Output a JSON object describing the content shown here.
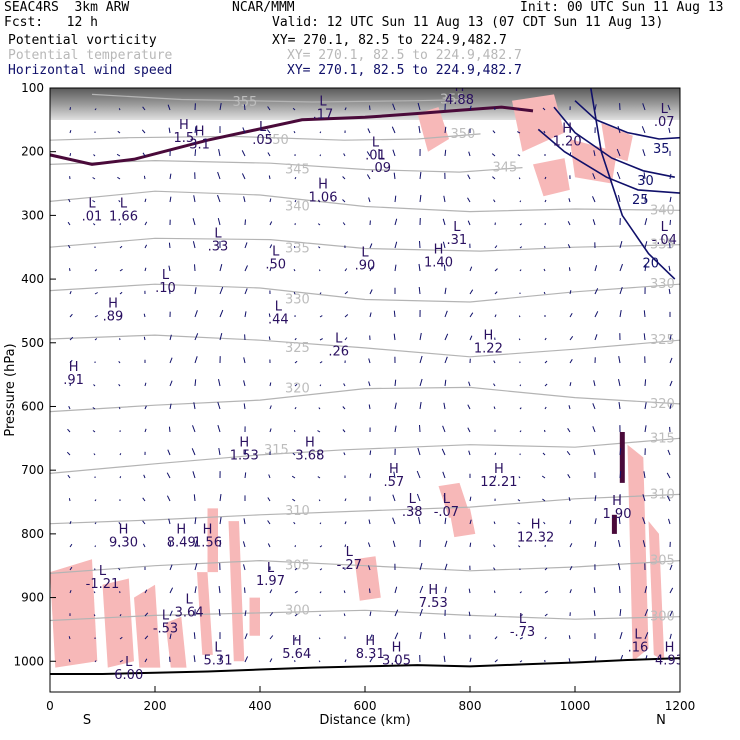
{
  "header": {
    "model": "SEAC4RS  3km ARW",
    "org": "NCAR/MMM",
    "init": "Init: 00 UTC Sun 11 Aug 13",
    "fcst": "Fcst:   12 h",
    "valid": "Valid: 12 UTC Sun 11 Aug 13 (07 CDT Sun 11 Aug 13)",
    "fields": [
      {
        "name": "Potential vorticity",
        "xy": "XY= 270.1, 82.5 to 224.9,482.7",
        "color": "#000000"
      },
      {
        "name": "Potential temperature",
        "xy": "XY= 270.1, 82.5 to 224.9,482.7",
        "color": "#b8b8b8"
      },
      {
        "name": "Horizontal wind speed",
        "xy": "XY= 270.1, 82.5 to 224.9,482.7",
        "color": "#10106a"
      }
    ]
  },
  "chart_data": {
    "type": "cross-section",
    "xlabel": "Distance (km)",
    "ylabel": "Pressure (hPa)",
    "xlim": [
      0,
      1200
    ],
    "ylim": [
      1020,
      100
    ],
    "x_ticks": [
      0,
      200,
      400,
      600,
      800,
      1000,
      1200
    ],
    "y_ticks": [
      100,
      200,
      300,
      400,
      500,
      600,
      700,
      800,
      900,
      1000
    ],
    "end_labels": {
      "left": "S",
      "right": "N"
    },
    "colors": {
      "theta": "#b4b4b4",
      "pv_fill": "#f7b8b8",
      "pv_line": "#4a0a3a",
      "speed": "#10106a",
      "wind": "#10106a",
      "terrain": "#000000"
    },
    "theta_contours": [
      {
        "label": "355",
        "points": [
          [
            80,
            110
          ],
          [
            250,
            118
          ],
          [
            500,
            122
          ],
          [
            700,
            120
          ],
          [
            800,
            118
          ]
        ]
      },
      {
        "label": "350",
        "points": [
          [
            0,
            182
          ],
          [
            150,
            178
          ],
          [
            350,
            176
          ],
          [
            560,
            182
          ],
          [
            700,
            180
          ],
          [
            820,
            172
          ]
        ]
      },
      {
        "label": "345",
        "points": [
          [
            0,
            220
          ],
          [
            200,
            214
          ],
          [
            420,
            218
          ],
          [
            600,
            228
          ],
          [
            780,
            232
          ],
          [
            900,
            225
          ]
        ]
      },
      {
        "label": "340",
        "points": [
          [
            0,
            278
          ],
          [
            200,
            262
          ],
          [
            400,
            268
          ],
          [
            600,
            286
          ],
          [
            800,
            294
          ],
          [
            1000,
            290
          ],
          [
            1200,
            292
          ]
        ]
      },
      {
        "label": "335",
        "points": [
          [
            0,
            350
          ],
          [
            200,
            336
          ],
          [
            420,
            338
          ],
          [
            600,
            352
          ],
          [
            820,
            356
          ],
          [
            1000,
            350
          ],
          [
            1200,
            346
          ]
        ]
      },
      {
        "label": "330",
        "points": [
          [
            0,
            418
          ],
          [
            200,
            408
          ],
          [
            400,
            414
          ],
          [
            600,
            432
          ],
          [
            800,
            436
          ],
          [
            1000,
            420
          ],
          [
            1200,
            408
          ]
        ]
      },
      {
        "label": "325",
        "points": [
          [
            0,
            494
          ],
          [
            200,
            488
          ],
          [
            400,
            496
          ],
          [
            600,
            508
          ],
          [
            800,
            522
          ],
          [
            1000,
            510
          ],
          [
            1200,
            496
          ]
        ]
      },
      {
        "label": "320",
        "points": [
          [
            0,
            608
          ],
          [
            200,
            598
          ],
          [
            400,
            590
          ],
          [
            600,
            572
          ],
          [
            800,
            570
          ],
          [
            1000,
            586
          ],
          [
            1200,
            596
          ]
        ]
      },
      {
        "label": "315",
        "points": [
          [
            0,
            705
          ],
          [
            200,
            690
          ],
          [
            400,
            676
          ],
          [
            560,
            668
          ],
          [
            800,
            660
          ],
          [
            1000,
            664
          ],
          [
            1200,
            650
          ]
        ]
      },
      {
        "label": "310",
        "points": [
          [
            0,
            784
          ],
          [
            200,
            778
          ],
          [
            400,
            770
          ],
          [
            600,
            764
          ],
          [
            800,
            758
          ],
          [
            1000,
            745
          ],
          [
            1200,
            738
          ]
        ]
      },
      {
        "label": "305",
        "points": [
          [
            0,
            862
          ],
          [
            200,
            850
          ],
          [
            400,
            842
          ],
          [
            600,
            850
          ],
          [
            800,
            858
          ],
          [
            1000,
            852
          ],
          [
            1200,
            842
          ]
        ]
      },
      {
        "label": "300",
        "points": [
          [
            0,
            936
          ],
          [
            200,
            928
          ],
          [
            400,
            924
          ],
          [
            600,
            920
          ],
          [
            800,
            928
          ],
          [
            1000,
            934
          ],
          [
            1200,
            930
          ]
        ]
      }
    ],
    "speed_contours": [
      {
        "label": "20",
        "points": [
          [
            1030,
            100
          ],
          [
            1050,
            200
          ],
          [
            1090,
            300
          ],
          [
            1140,
            360
          ],
          [
            1190,
            400
          ]
        ]
      },
      {
        "label": "25",
        "points": [
          [
            930,
            165
          ],
          [
            980,
            200
          ],
          [
            1060,
            240
          ],
          [
            1120,
            260
          ],
          [
            1200,
            265
          ]
        ]
      },
      {
        "label": "30",
        "points": [
          [
            960,
            130
          ],
          [
            1000,
            170
          ],
          [
            1070,
            210
          ],
          [
            1130,
            230
          ],
          [
            1190,
            240
          ]
        ]
      },
      {
        "label": "35",
        "points": [
          [
            1000,
            120
          ],
          [
            1040,
            150
          ],
          [
            1100,
            170
          ],
          [
            1160,
            180
          ],
          [
            1200,
            178
          ]
        ]
      }
    ],
    "pv_line": [
      [
        0,
        205
      ],
      [
        80,
        220
      ],
      [
        160,
        212
      ],
      [
        300,
        182
      ],
      [
        480,
        150
      ],
      [
        600,
        146
      ],
      [
        700,
        140
      ],
      [
        780,
        135
      ],
      [
        860,
        130
      ],
      [
        920,
        136
      ]
    ],
    "pv_fill_regions": [
      [
        [
          700,
          140
        ],
        [
          740,
          130
        ],
        [
          760,
          180
        ],
        [
          720,
          200
        ]
      ],
      [
        [
          880,
          120
        ],
        [
          960,
          110
        ],
        [
          980,
          170
        ],
        [
          900,
          200
        ]
      ],
      [
        [
          920,
          220
        ],
        [
          980,
          210
        ],
        [
          990,
          260
        ],
        [
          940,
          270
        ]
      ],
      [
        [
          990,
          180
        ],
        [
          1080,
          200
        ],
        [
          1070,
          250
        ],
        [
          1000,
          240
        ]
      ],
      [
        [
          1050,
          155
        ],
        [
          1110,
          175
        ],
        [
          1100,
          215
        ],
        [
          1060,
          205
        ]
      ],
      [
        [
          1100,
          660
        ],
        [
          1130,
          680
        ],
        [
          1140,
          980
        ],
        [
          1110,
          1000
        ]
      ],
      [
        [
          1140,
          780
        ],
        [
          1160,
          800
        ],
        [
          1170,
          1000
        ],
        [
          1150,
          990
        ]
      ],
      [
        [
          740,
          725
        ],
        [
          780,
          720
        ],
        [
          800,
          770
        ],
        [
          760,
          775
        ]
      ],
      [
        [
          760,
          760
        ],
        [
          800,
          760
        ],
        [
          810,
          800
        ],
        [
          770,
          805
        ]
      ],
      [
        [
          580,
          840
        ],
        [
          620,
          835
        ],
        [
          630,
          900
        ],
        [
          590,
          905
        ]
      ],
      [
        [
          340,
          780
        ],
        [
          360,
          780
        ],
        [
          370,
          1000
        ],
        [
          350,
          1000
        ]
      ],
      [
        [
          380,
          900
        ],
        [
          400,
          900
        ],
        [
          400,
          960
        ],
        [
          380,
          960
        ]
      ],
      [
        [
          0,
          860
        ],
        [
          80,
          840
        ],
        [
          90,
          1000
        ],
        [
          10,
          1010
        ]
      ],
      [
        [
          100,
          880
        ],
        [
          150,
          870
        ],
        [
          160,
          1000
        ],
        [
          110,
          1010
        ]
      ],
      [
        [
          160,
          900
        ],
        [
          200,
          880
        ],
        [
          210,
          1010
        ],
        [
          170,
          1010
        ]
      ],
      [
        [
          220,
          940
        ],
        [
          250,
          930
        ],
        [
          260,
          1010
        ],
        [
          230,
          1010
        ]
      ],
      [
        [
          280,
          860
        ],
        [
          300,
          860
        ],
        [
          310,
          990
        ],
        [
          290,
          990
        ]
      ],
      [
        [
          300,
          760
        ],
        [
          320,
          760
        ],
        [
          320,
          860
        ],
        [
          300,
          860
        ]
      ]
    ],
    "terrain": [
      [
        0,
        1020
      ],
      [
        100,
        1020
      ],
      [
        200,
        1018
      ],
      [
        300,
        1016
      ],
      [
        400,
        1013
      ],
      [
        500,
        1010
      ],
      [
        600,
        1008
      ],
      [
        700,
        1006
      ],
      [
        800,
        1008
      ],
      [
        900,
        1005
      ],
      [
        1000,
        1002
      ],
      [
        1100,
        998
      ],
      [
        1200,
        995
      ]
    ],
    "hl_labels": [
      {
        "letter": "L",
        "value": ".17",
        "x": 520,
        "y": 148
      },
      {
        "letter": "H",
        "value": "4.88",
        "x": 780,
        "y": 125
      },
      {
        "letter": "H",
        "value": "1.5",
        "x": 255,
        "y": 185
      },
      {
        "letter": "H",
        "value": "3.1",
        "x": 285,
        "y": 195
      },
      {
        "letter": "L",
        "value": ".05",
        "x": 405,
        "y": 188
      },
      {
        "letter": "L",
        "value": ".01",
        "x": 620,
        "y": 212
      },
      {
        "letter": "L",
        "value": ".09",
        "x": 630,
        "y": 232
      },
      {
        "letter": "H",
        "value": "1.20",
        "x": 985,
        "y": 190
      },
      {
        "letter": "L",
        "value": ".07",
        "x": 1170,
        "y": 160
      },
      {
        "letter": "H",
        "value": "1.06",
        "x": 520,
        "y": 278
      },
      {
        "letter": "L",
        "value": ".01",
        "x": 80,
        "y": 308
      },
      {
        "letter": "L",
        "value": "1.66",
        "x": 140,
        "y": 308
      },
      {
        "letter": "L",
        "value": ".33",
        "x": 320,
        "y": 355
      },
      {
        "letter": "L",
        "value": ".50",
        "x": 430,
        "y": 383
      },
      {
        "letter": "L",
        "value": ".90",
        "x": 600,
        "y": 385
      },
      {
        "letter": "H",
        "value": "1.40",
        "x": 740,
        "y": 380
      },
      {
        "letter": "L",
        "value": ".31",
        "x": 775,
        "y": 345
      },
      {
        "letter": "L",
        "value": "-.04",
        "x": 1170,
        "y": 345
      },
      {
        "letter": "L",
        "value": ".10",
        "x": 220,
        "y": 420
      },
      {
        "letter": "H",
        "value": ".89",
        "x": 120,
        "y": 465
      },
      {
        "letter": "L",
        "value": ".44",
        "x": 435,
        "y": 470
      },
      {
        "letter": "L",
        "value": ".26",
        "x": 550,
        "y": 520
      },
      {
        "letter": "H",
        "value": "1.22",
        "x": 835,
        "y": 515
      },
      {
        "letter": "H",
        "value": ".91",
        "x": 45,
        "y": 565
      },
      {
        "letter": "H",
        "value": "1.53",
        "x": 370,
        "y": 683
      },
      {
        "letter": "H",
        "value": "3.68",
        "x": 495,
        "y": 683
      },
      {
        "letter": "H",
        "value": ".57",
        "x": 655,
        "y": 725
      },
      {
        "letter": "H",
        "value": "12.21",
        "x": 855,
        "y": 725
      },
      {
        "letter": "L",
        "value": ".38",
        "x": 690,
        "y": 772
      },
      {
        "letter": "L",
        "value": "-.07",
        "x": 755,
        "y": 772
      },
      {
        "letter": "H",
        "value": "1.90",
        "x": 1080,
        "y": 775
      },
      {
        "letter": "H",
        "value": "9.30",
        "x": 140,
        "y": 820
      },
      {
        "letter": "H",
        "value": "8.49",
        "x": 250,
        "y": 820
      },
      {
        "letter": "H",
        "value": "1.56",
        "x": 300,
        "y": 820
      },
      {
        "letter": "H",
        "value": "12.32",
        "x": 925,
        "y": 812
      },
      {
        "letter": "L",
        "value": "-.27",
        "x": 570,
        "y": 855
      },
      {
        "letter": "L",
        "value": "-1.21",
        "x": 100,
        "y": 885
      },
      {
        "letter": "L",
        "value": "1.97",
        "x": 420,
        "y": 880
      },
      {
        "letter": "H",
        "value": "7.53",
        "x": 730,
        "y": 915
      },
      {
        "letter": "L",
        "value": "3.64",
        "x": 265,
        "y": 930
      },
      {
        "letter": "L",
        "value": "-.53",
        "x": 220,
        "y": 955
      },
      {
        "letter": "L",
        "value": "-.73",
        "x": 900,
        "y": 960
      },
      {
        "letter": "H",
        "value": "5.64",
        "x": 470,
        "y": 995
      },
      {
        "letter": "H",
        "value": "8.31",
        "x": 610,
        "y": 995
      },
      {
        "letter": "H",
        "value": "3.05",
        "x": 660,
        "y": 1005
      },
      {
        "letter": "L",
        "value": "5.31",
        "x": 320,
        "y": 1005
      },
      {
        "letter": "L",
        "value": ".16",
        "x": 1120,
        "y": 985
      },
      {
        "letter": "H",
        "value": "4.93",
        "x": 1180,
        "y": 1005
      },
      {
        "letter": "L",
        "value": "6.00",
        "x": 150,
        "y": 1028
      }
    ]
  }
}
